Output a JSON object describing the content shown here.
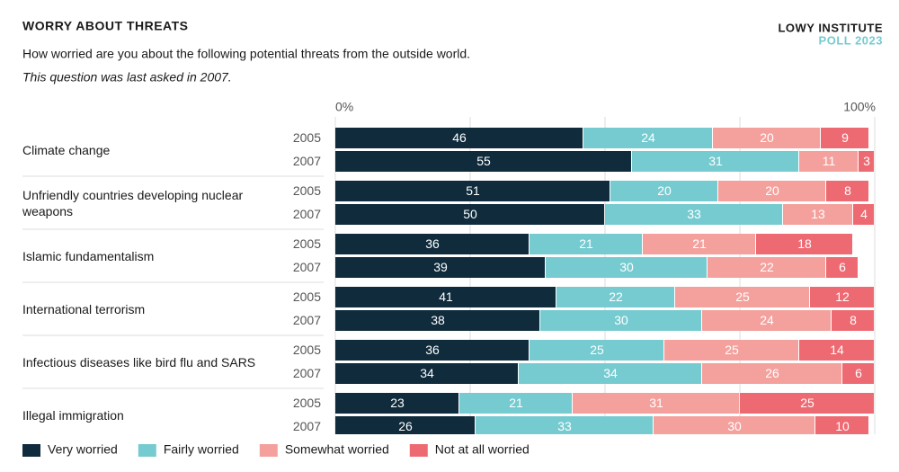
{
  "chart_data": {
    "type": "stacked-bar-horizontal",
    "title": "WORRY ABOUT THREATS",
    "subtitle": "How worried are you about the following potential threats from the outside world.",
    "note": "This question was last asked in 2007.",
    "brand": "LOWY INSTITUTE",
    "brand_sub": "POLL 2023",
    "group_labels": [
      "Climate change",
      "Unfriendly countries developing nuclear weapons",
      "Islamic fundamentalism",
      "International terrorism",
      "Infectious diseases like bird flu and SARS",
      "Illegal immigration"
    ],
    "categories": [
      "2005",
      "2007",
      "2005",
      "2007",
      "2005",
      "2007",
      "2005",
      "2007",
      "2005",
      "2007",
      "2005",
      "2007"
    ],
    "series": [
      {
        "name": "Very worried",
        "color": "#0f2b3c",
        "values": [
          46,
          55,
          51,
          50,
          36,
          39,
          41,
          38,
          36,
          34,
          23,
          26
        ]
      },
      {
        "name": "Fairly worried",
        "color": "#76cbd0",
        "values": [
          24,
          31,
          20,
          33,
          21,
          30,
          22,
          30,
          25,
          34,
          21,
          33
        ]
      },
      {
        "name": "Somewhat worried",
        "color": "#f4a19d",
        "values": [
          20,
          11,
          20,
          13,
          21,
          22,
          25,
          24,
          25,
          26,
          31,
          30
        ]
      },
      {
        "name": "Not at all worried",
        "color": "#ee6a72",
        "values": [
          9,
          3,
          8,
          4,
          18,
          6,
          12,
          8,
          14,
          6,
          25,
          10
        ]
      }
    ],
    "xlim": [
      0,
      100
    ],
    "xticks": [
      {
        "value": 0,
        "label": "0%"
      },
      {
        "value": 25,
        "label": null
      },
      {
        "value": 50,
        "label": null
      },
      {
        "value": 75,
        "label": null
      },
      {
        "value": 100,
        "label": "100%"
      }
    ],
    "grid": true
  }
}
